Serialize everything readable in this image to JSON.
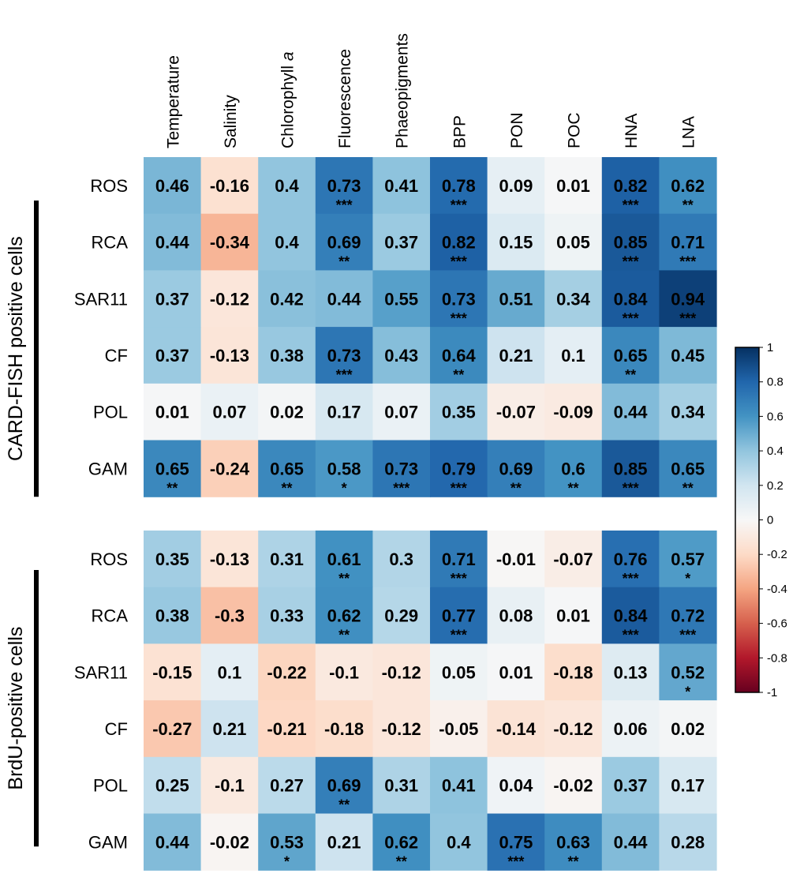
{
  "chart_data": {
    "type": "heatmap",
    "columns": [
      "Temperature",
      "Salinity",
      "Chlorophyll a",
      "Fluorescence",
      "Phaeopigments",
      "BPP",
      "PON",
      "POC",
      "HNA",
      "LNA"
    ],
    "colorbar": {
      "range": [
        -1,
        1
      ],
      "ticks": [
        "1",
        "0.8",
        "0.6",
        "0.4",
        "0.2",
        "0",
        "-0.2",
        "-0.4",
        "-0.6",
        "-0.8",
        "-1"
      ],
      "colors": {
        "negative": "#67001f",
        "neutral": "#f7f7f7",
        "positive": "#053061"
      }
    },
    "panels": [
      {
        "group_label": "CARD-FISH positive cells",
        "rows": [
          {
            "label": "ROS",
            "values": [
              0.46,
              -0.16,
              0.4,
              0.73,
              0.41,
              0.78,
              0.09,
              0.01,
              0.82,
              0.62
            ],
            "labels": [
              "0.46",
              "-0.16",
              "0.4",
              "0.73",
              "0.41",
              "0.78",
              "0.09",
              "0.01",
              "0.82",
              "0.62"
            ],
            "sig": [
              "",
              "",
              "",
              "***",
              "",
              "***",
              "",
              "",
              "***",
              "**"
            ]
          },
          {
            "label": "RCA",
            "values": [
              0.44,
              -0.34,
              0.4,
              0.69,
              0.37,
              0.82,
              0.15,
              0.05,
              0.85,
              0.71
            ],
            "labels": [
              "0.44",
              "-0.34",
              "0.4",
              "0.69",
              "0.37",
              "0.82",
              "0.15",
              "0.05",
              "0.85",
              "0.71"
            ],
            "sig": [
              "",
              "",
              "",
              "**",
              "",
              "***",
              "",
              "",
              "***",
              "***"
            ]
          },
          {
            "label": "SAR11",
            "values": [
              0.37,
              -0.12,
              0.42,
              0.44,
              0.55,
              0.73,
              0.51,
              0.34,
              0.84,
              0.94
            ],
            "labels": [
              "0.37",
              "-0.12",
              "0.42",
              "0.44",
              "0.55",
              "0.73",
              "0.51",
              "0.34",
              "0.84",
              "0.94"
            ],
            "sig": [
              "",
              "",
              "",
              "",
              "",
              "***",
              "",
              "",
              "***",
              "***"
            ]
          },
          {
            "label": "CF",
            "values": [
              0.37,
              -0.13,
              0.38,
              0.73,
              0.43,
              0.64,
              0.21,
              0.1,
              0.65,
              0.45
            ],
            "labels": [
              "0.37",
              "-0.13",
              "0.38",
              "0.73",
              "0.43",
              "0.64",
              "0.21",
              "0.1",
              "0.65",
              "0.45"
            ],
            "sig": [
              "",
              "",
              "",
              "***",
              "",
              "**",
              "",
              "",
              "**",
              ""
            ]
          },
          {
            "label": "POL",
            "values": [
              0.01,
              0.07,
              0.02,
              0.17,
              0.07,
              0.35,
              -0.07,
              -0.09,
              0.44,
              0.34
            ],
            "labels": [
              "0.01",
              "0.07",
              "0.02",
              "0.17",
              "0.07",
              "0.35",
              "-0.07",
              "-0.09",
              "0.44",
              "0.34"
            ],
            "sig": [
              "",
              "",
              "",
              "",
              "",
              "",
              "",
              "",
              "",
              ""
            ]
          },
          {
            "label": "GAM",
            "values": [
              0.65,
              -0.24,
              0.65,
              0.58,
              0.73,
              0.79,
              0.69,
              0.6,
              0.85,
              0.65
            ],
            "labels": [
              "0.65",
              "-0.24",
              "0.65",
              "0.58",
              "0.73",
              "0.79",
              "0.69",
              "0.6",
              "0.85",
              "0.65"
            ],
            "sig": [
              "**",
              "",
              "**",
              "*",
              "***",
              "***",
              "**",
              "**",
              "***",
              "**"
            ]
          }
        ]
      },
      {
        "group_label": "BrdU-positive cells",
        "rows": [
          {
            "label": "ROS",
            "values": [
              0.35,
              -0.13,
              0.31,
              0.61,
              0.3,
              0.71,
              -0.01,
              -0.07,
              0.76,
              0.57
            ],
            "labels": [
              "0.35",
              "-0.13",
              "0.31",
              "0.61",
              "0.3",
              "0.71",
              "-0.01",
              "-0.07",
              "0.76",
              "0.57"
            ],
            "sig": [
              "",
              "",
              "",
              "**",
              "",
              "***",
              "",
              "",
              "***",
              "*"
            ]
          },
          {
            "label": "RCA",
            "values": [
              0.38,
              -0.3,
              0.33,
              0.62,
              0.29,
              0.77,
              0.08,
              0.01,
              0.84,
              0.72
            ],
            "labels": [
              "0.38",
              "-0.3",
              "0.33",
              "0.62",
              "0.29",
              "0.77",
              "0.08",
              "0.01",
              "0.84",
              "0.72"
            ],
            "sig": [
              "",
              "",
              "",
              "**",
              "",
              "***",
              "",
              "",
              "***",
              "***"
            ]
          },
          {
            "label": "SAR11",
            "values": [
              -0.15,
              0.1,
              -0.22,
              -0.1,
              -0.12,
              0.05,
              0.01,
              -0.18,
              0.13,
              0.52
            ],
            "labels": [
              "-0.15",
              "0.1",
              "-0.22",
              "-0.1",
              "-0.12",
              "0.05",
              "0.01",
              "-0.18",
              "0.13",
              "0.52"
            ],
            "sig": [
              "",
              "",
              "",
              "",
              "",
              "",
              "",
              "",
              "",
              "*"
            ]
          },
          {
            "label": "CF",
            "values": [
              -0.27,
              0.21,
              -0.21,
              -0.18,
              -0.12,
              -0.05,
              -0.14,
              -0.12,
              0.06,
              0.02
            ],
            "labels": [
              "-0.27",
              "0.21",
              "-0.21",
              "-0.18",
              "-0.12",
              "-0.05",
              "-0.14",
              "-0.12",
              "0.06",
              "0.02"
            ],
            "sig": [
              "",
              "",
              "",
              "",
              "",
              "",
              "",
              "",
              "",
              ""
            ]
          },
          {
            "label": "POL",
            "values": [
              0.25,
              -0.1,
              0.27,
              0.69,
              0.31,
              0.41,
              0.04,
              -0.02,
              0.37,
              0.17
            ],
            "labels": [
              "0.25",
              "-0.1",
              "0.27",
              "0.69",
              "0.31",
              "0.41",
              "0.04",
              "-0.02",
              "0.37",
              "0.17"
            ],
            "sig": [
              "",
              "",
              "",
              "**",
              "",
              "",
              "",
              "",
              "",
              ""
            ]
          },
          {
            "label": "GAM",
            "values": [
              0.44,
              -0.02,
              0.53,
              0.21,
              0.62,
              0.4,
              0.75,
              0.63,
              0.44,
              0.28
            ],
            "labels": [
              "0.44",
              "-0.02",
              "0.53",
              "0.21",
              "0.62",
              "0.4",
              "0.75",
              "0.63",
              "0.44",
              "0.28"
            ],
            "sig": [
              "",
              "",
              "*",
              "",
              "**",
              "",
              "***",
              "**",
              "",
              ""
            ]
          }
        ]
      }
    ]
  }
}
